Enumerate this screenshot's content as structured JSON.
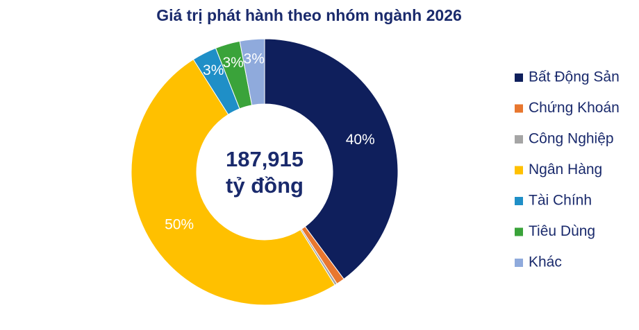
{
  "chart_data": {
    "type": "donut",
    "title": "Giá trị phát hành theo nhóm ngành 2026",
    "center_text": [
      "187,915",
      "tỷ đồng"
    ],
    "categories": [
      "Bất Động Sản",
      "Chứng Khoán",
      "Công Nghiệp",
      "Ngân Hàng",
      "Tài Chính",
      "Tiêu Dùng",
      "Khác"
    ],
    "values": [
      40,
      1,
      0.3,
      50,
      3,
      3,
      3
    ],
    "value_labels": [
      "40%",
      null,
      null,
      "50%",
      "3%",
      "3%",
      "3%"
    ],
    "colors": [
      "#0f1f5c",
      "#e8772e",
      "#a5a5a5",
      "#ffc000",
      "#1f8fc7",
      "#3aa33a",
      "#8faadc"
    ],
    "legend": "right"
  }
}
